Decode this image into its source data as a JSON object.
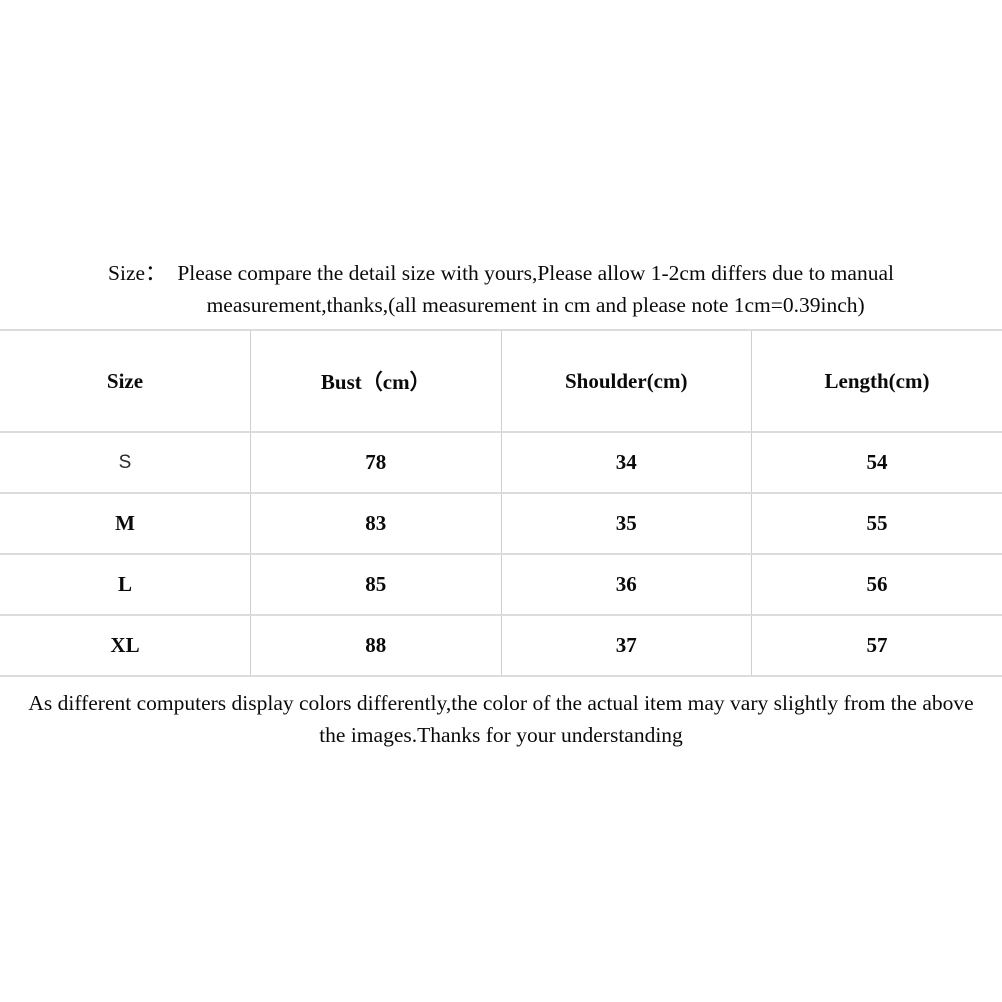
{
  "colors": {
    "background": "#ffffff",
    "text": "#0a0a0a",
    "row_border": "#dcdcdc",
    "column_border": "#cfcfcf"
  },
  "intro": {
    "label": "Size：  ",
    "line1": "Please compare the detail size with yours,Please allow 1-2cm differs due to manual",
    "line2": "measurement,thanks,(all measurement in cm and please note 1cm=0.39inch)"
  },
  "size_table": {
    "headers": [
      "Size",
      "Bust（cm）",
      "Shoulder(cm)",
      "Length(cm)"
    ],
    "rows": [
      {
        "size": "S",
        "bust": "78",
        "shoulder": "34",
        "length": "54"
      },
      {
        "size": "M",
        "bust": "83",
        "shoulder": "35",
        "length": "55"
      },
      {
        "size": "L",
        "bust": "85",
        "shoulder": "36",
        "length": "56"
      },
      {
        "size": "XL",
        "bust": "88",
        "shoulder": "37",
        "length": "57"
      }
    ]
  },
  "footer": {
    "line1": "As different computers display colors differently,the color of the actual item may vary slightly from the above",
    "line2": "the images.Thanks for your understanding"
  }
}
